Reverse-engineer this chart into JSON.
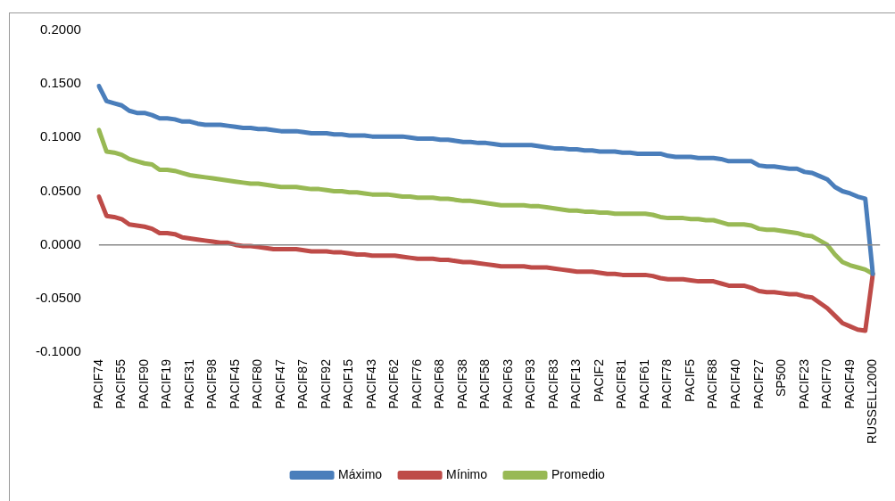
{
  "chart_data": {
    "type": "line",
    "categories": [
      "PACIF74",
      null,
      null,
      "PACIF55",
      null,
      null,
      "PACIF90",
      null,
      null,
      "PACIF19",
      null,
      null,
      "PACIF31",
      null,
      null,
      "PACIF98",
      null,
      null,
      "PACIF45",
      null,
      null,
      "PACIF80",
      null,
      null,
      "PACIF47",
      null,
      null,
      "PACIF87",
      null,
      null,
      "PACIF92",
      null,
      null,
      "PACIF15",
      null,
      null,
      "PACIF43",
      null,
      null,
      "PACIF62",
      null,
      null,
      "PACIF76",
      null,
      null,
      "PACIF68",
      null,
      null,
      "PACIF38",
      null,
      null,
      "PACIF58",
      null,
      null,
      "PACIF63",
      null,
      null,
      "PACIF93",
      null,
      null,
      "PACIF83",
      null,
      null,
      "PACIF13",
      null,
      null,
      "PACIF2",
      null,
      null,
      "PACIF81",
      null,
      null,
      "PACIF61",
      null,
      null,
      "PACIF78",
      null,
      null,
      "PACIF5",
      null,
      null,
      "PACIF88",
      null,
      null,
      "PACIF40",
      null,
      null,
      "PACIF27",
      null,
      null,
      "SP500",
      null,
      null,
      "PACIF23",
      null,
      null,
      "PACIF70",
      null,
      null,
      "PACIF49",
      null,
      null,
      "RUSSELL2000"
    ],
    "series": [
      {
        "name": "Máximo",
        "color": "#4a7ebb",
        "values": [
          0.148,
          0.134,
          0.132,
          0.13,
          0.125,
          0.123,
          0.123,
          0.121,
          0.118,
          0.118,
          0.117,
          0.115,
          0.115,
          0.113,
          0.112,
          0.112,
          0.112,
          0.111,
          0.11,
          0.109,
          0.109,
          0.108,
          0.108,
          0.107,
          0.106,
          0.106,
          0.106,
          0.105,
          0.104,
          0.104,
          0.104,
          0.103,
          0.103,
          0.102,
          0.102,
          0.102,
          0.101,
          0.101,
          0.101,
          0.101,
          0.101,
          0.1,
          0.099,
          0.099,
          0.099,
          0.098,
          0.098,
          0.097,
          0.096,
          0.096,
          0.095,
          0.095,
          0.094,
          0.093,
          0.093,
          0.093,
          0.093,
          0.093,
          0.092,
          0.091,
          0.09,
          0.09,
          0.089,
          0.089,
          0.088,
          0.088,
          0.087,
          0.087,
          0.087,
          0.086,
          0.086,
          0.085,
          0.085,
          0.085,
          0.085,
          0.083,
          0.082,
          0.082,
          0.082,
          0.081,
          0.081,
          0.081,
          0.08,
          0.078,
          0.078,
          0.078,
          0.078,
          0.074,
          0.073,
          0.073,
          0.072,
          0.071,
          0.071,
          0.068,
          0.067,
          0.064,
          0.061,
          0.054,
          0.05,
          0.048,
          0.045,
          0.043,
          -0.027
        ]
      },
      {
        "name": "Mínimo",
        "color": "#be4b48",
        "values": [
          0.045,
          0.027,
          0.026,
          0.024,
          0.019,
          0.018,
          0.017,
          0.015,
          0.011,
          0.011,
          0.01,
          0.007,
          0.006,
          0.005,
          0.004,
          0.003,
          0.002,
          0.002,
          0.0,
          -0.001,
          -0.001,
          -0.002,
          -0.003,
          -0.004,
          -0.004,
          -0.004,
          -0.004,
          -0.005,
          -0.006,
          -0.006,
          -0.006,
          -0.007,
          -0.007,
          -0.008,
          -0.009,
          -0.009,
          -0.01,
          -0.01,
          -0.01,
          -0.01,
          -0.011,
          -0.012,
          -0.013,
          -0.013,
          -0.013,
          -0.014,
          -0.014,
          -0.015,
          -0.016,
          -0.016,
          -0.017,
          -0.018,
          -0.019,
          -0.02,
          -0.02,
          -0.02,
          -0.02,
          -0.021,
          -0.021,
          -0.021,
          -0.022,
          -0.023,
          -0.024,
          -0.025,
          -0.025,
          -0.025,
          -0.026,
          -0.027,
          -0.027,
          -0.028,
          -0.028,
          -0.028,
          -0.028,
          -0.029,
          -0.031,
          -0.032,
          -0.032,
          -0.032,
          -0.033,
          -0.034,
          -0.034,
          -0.034,
          -0.036,
          -0.038,
          -0.038,
          -0.038,
          -0.04,
          -0.043,
          -0.044,
          -0.044,
          -0.045,
          -0.046,
          -0.046,
          -0.048,
          -0.049,
          -0.054,
          -0.059,
          -0.066,
          -0.073,
          -0.076,
          -0.079,
          -0.08,
          -0.027
        ]
      },
      {
        "name": "Promedio",
        "color": "#98b954",
        "values": [
          0.107,
          0.087,
          0.086,
          0.084,
          0.08,
          0.078,
          0.076,
          0.075,
          0.07,
          0.07,
          0.069,
          0.067,
          0.065,
          0.064,
          0.063,
          0.062,
          0.061,
          0.06,
          0.059,
          0.058,
          0.057,
          0.057,
          0.056,
          0.055,
          0.054,
          0.054,
          0.054,
          0.053,
          0.052,
          0.052,
          0.051,
          0.05,
          0.05,
          0.049,
          0.049,
          0.048,
          0.047,
          0.047,
          0.047,
          0.046,
          0.045,
          0.045,
          0.044,
          0.044,
          0.044,
          0.043,
          0.043,
          0.042,
          0.041,
          0.041,
          0.04,
          0.039,
          0.038,
          0.037,
          0.037,
          0.037,
          0.037,
          0.036,
          0.036,
          0.035,
          0.034,
          0.033,
          0.032,
          0.032,
          0.031,
          0.031,
          0.03,
          0.03,
          0.029,
          0.029,
          0.029,
          0.029,
          0.029,
          0.028,
          0.026,
          0.025,
          0.025,
          0.025,
          0.024,
          0.024,
          0.023,
          0.023,
          0.021,
          0.019,
          0.019,
          0.019,
          0.018,
          0.015,
          0.014,
          0.014,
          0.013,
          0.012,
          0.011,
          0.009,
          0.008,
          0.004,
          0.0,
          -0.009,
          -0.016,
          -0.019,
          -0.021,
          -0.023,
          -0.027
        ]
      }
    ],
    "ylim": [
      -0.1,
      0.2
    ],
    "yticks": [
      {
        "value": -0.1,
        "label": "-0.1000"
      },
      {
        "value": -0.05,
        "label": "-0.0500"
      },
      {
        "value": 0,
        "label": "0.0000"
      },
      {
        "value": 0.05,
        "label": "0.0500"
      },
      {
        "value": 0.1,
        "label": "0.1000"
      },
      {
        "value": 0.15,
        "label": "0.1500"
      },
      {
        "value": 0.2,
        "label": "0.2000"
      }
    ],
    "legend": "bottom",
    "marker": "none",
    "line_style": "solid"
  }
}
